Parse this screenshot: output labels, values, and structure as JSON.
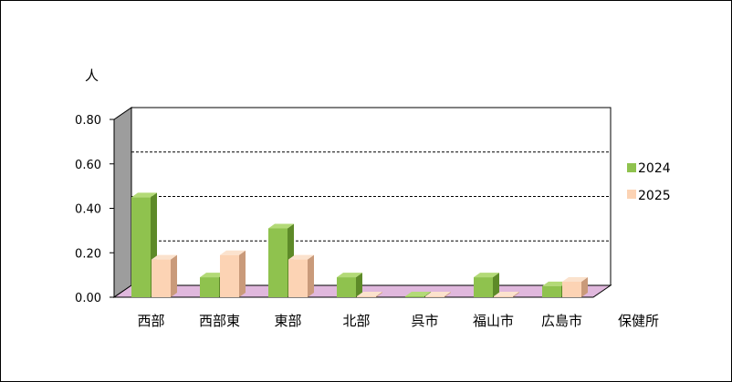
{
  "chart_data": {
    "type": "bar",
    "title": "",
    "ylabel": "人",
    "xlabel": "保健所",
    "ylim": [
      0,
      0.8
    ],
    "yticks": [
      "0.00",
      "0.20",
      "0.40",
      "0.60",
      "0.80"
    ],
    "grid": true,
    "legend_position": "right",
    "categories": [
      "西部",
      "西部東",
      "東部",
      "北部",
      "呉市",
      "福山市",
      "広島市"
    ],
    "series": [
      {
        "name": "2024",
        "values": [
          0.45,
          0.09,
          0.31,
          0.09,
          0.0,
          0.09,
          0.05
        ]
      },
      {
        "name": "2025",
        "values": [
          0.17,
          0.19,
          0.17,
          0.0,
          0.0,
          0.0,
          0.07
        ]
      }
    ]
  },
  "colors": {
    "series_2024_front": "#8fc24e",
    "series_2024_top": "#b3da77",
    "series_2024_side": "#5d8a28",
    "series_2025_front": "#fcd3b4",
    "series_2025_top": "#fbe2cd",
    "series_2025_side": "#c99a7a",
    "back_wall": "#ffffff",
    "side_wall": "#9d9d9d",
    "floor": "#e0b8dd"
  }
}
